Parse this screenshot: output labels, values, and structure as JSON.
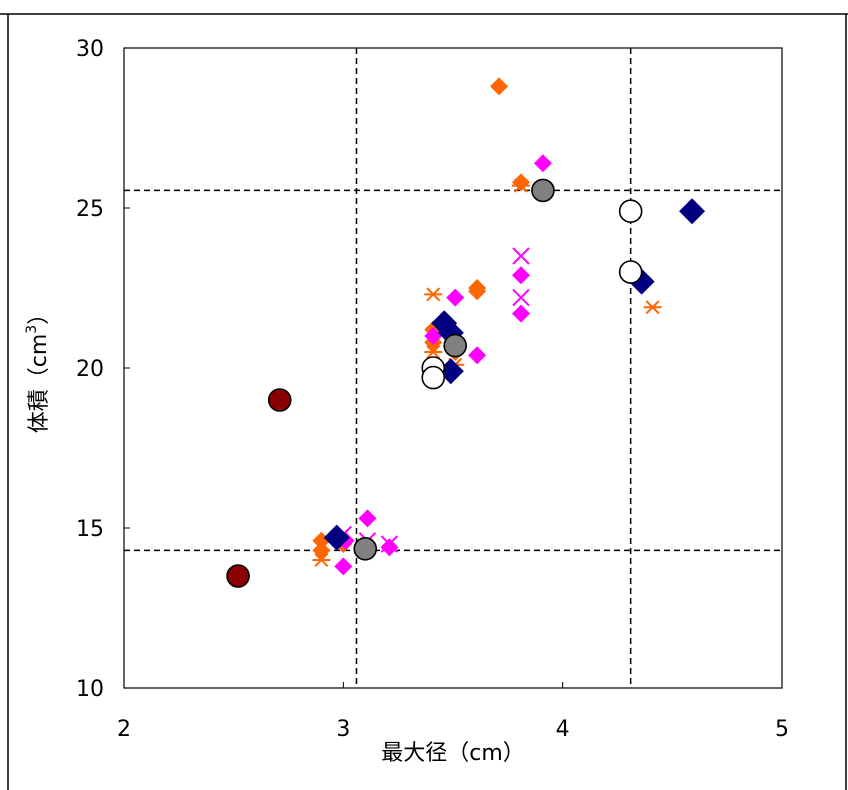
{
  "chart_data": {
    "type": "scatter",
    "title": "",
    "xlabel": "最大径（cm）",
    "ylabel_main": "体積（cm",
    "ylabel_sup": "3",
    "ylabel_close": "）",
    "xlim": [
      2,
      5
    ],
    "ylim": [
      10,
      30
    ],
    "xticks": [
      "2",
      "3",
      "4",
      "5"
    ],
    "yticks": [
      "10",
      "15",
      "20",
      "25",
      "30"
    ],
    "grid": false,
    "legend": "none",
    "reference_lines": {
      "x": [
        3.06,
        4.31
      ],
      "y": [
        14.3,
        25.55
      ]
    },
    "series": [
      {
        "marker": "diamond",
        "color": "#ff6600",
        "points": [
          [
            3.71,
            28.8
          ],
          [
            3.81,
            25.8
          ],
          [
            3.61,
            22.5
          ],
          [
            3.61,
            22.4
          ],
          [
            3.41,
            21.2
          ],
          [
            3.41,
            20.8
          ],
          [
            3.51,
            20.5
          ],
          [
            2.9,
            14.6
          ],
          [
            2.9,
            14.3
          ],
          [
            3.0,
            14.5
          ]
        ]
      },
      {
        "marker": "asterisk",
        "color": "#ff6600",
        "points": [
          [
            3.41,
            22.3
          ],
          [
            3.81,
            25.7
          ],
          [
            4.41,
            21.9
          ],
          [
            3.41,
            20.5
          ],
          [
            2.9,
            14.0
          ],
          [
            3.1,
            14.4
          ],
          [
            3.51,
            20.1
          ]
        ]
      },
      {
        "marker": "diamond",
        "color": "#ff00ff",
        "points": [
          [
            3.91,
            26.4
          ],
          [
            3.51,
            22.2
          ],
          [
            3.81,
            22.9
          ],
          [
            3.81,
            21.7
          ],
          [
            3.61,
            20.4
          ],
          [
            3.41,
            21.0
          ],
          [
            3.11,
            15.3
          ],
          [
            3.0,
            13.8
          ],
          [
            3.21,
            14.4
          ],
          [
            3.01,
            14.6
          ]
        ]
      },
      {
        "marker": "cross",
        "color": "#ff00ff",
        "points": [
          [
            3.81,
            23.5
          ],
          [
            3.81,
            22.2
          ],
          [
            3.0,
            14.8
          ],
          [
            3.11,
            14.6
          ],
          [
            3.21,
            14.5
          ],
          [
            3.51,
            20.7
          ]
        ]
      },
      {
        "marker": "diamond-large",
        "color": "#000080",
        "points": [
          [
            4.59,
            24.9
          ],
          [
            4.36,
            22.7
          ],
          [
            3.46,
            21.4
          ],
          [
            3.49,
            21.1
          ],
          [
            3.49,
            19.9
          ],
          [
            2.97,
            14.7
          ]
        ]
      },
      {
        "marker": "circle-open",
        "color": "#000000",
        "points": [
          [
            4.31,
            24.9
          ],
          [
            4.31,
            23.0
          ],
          [
            3.41,
            20.0
          ],
          [
            3.41,
            19.7
          ]
        ]
      },
      {
        "marker": "circle-gray",
        "color": "#808080",
        "points": [
          [
            3.91,
            25.55
          ],
          [
            3.51,
            20.7
          ],
          [
            3.1,
            14.35
          ]
        ]
      },
      {
        "marker": "circle-red",
        "color": "#8b0000",
        "points": [
          [
            2.71,
            19.0
          ],
          [
            2.52,
            13.5
          ]
        ]
      }
    ]
  }
}
